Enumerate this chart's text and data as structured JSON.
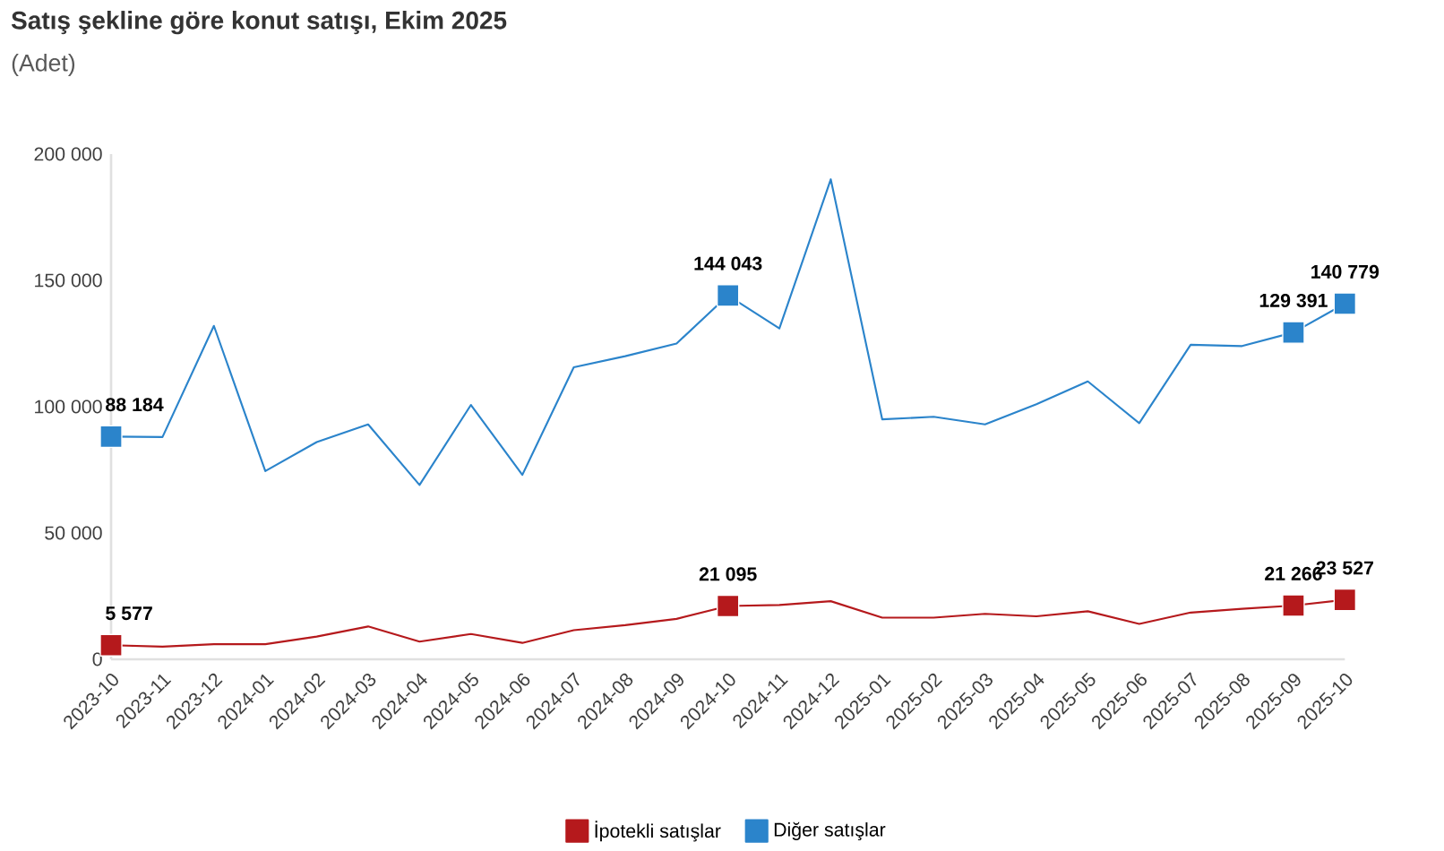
{
  "chart_data": {
    "type": "line",
    "title": "Satış şekline göre konut satışı, Ekim 2025",
    "subtitle": "(Adet)",
    "categories": [
      "2023-10",
      "2023-11",
      "2023-12",
      "2024-01",
      "2024-02",
      "2024-03",
      "2024-04",
      "2024-05",
      "2024-06",
      "2024-07",
      "2024-08",
      "2024-09",
      "2024-10",
      "2024-11",
      "2024-12",
      "2025-01",
      "2025-02",
      "2025-03",
      "2025-04",
      "2025-05",
      "2025-06",
      "2025-07",
      "2025-08",
      "2025-09",
      "2025-10"
    ],
    "series": [
      {
        "name": "İpotekli satışlar",
        "color": "#b5191c",
        "values": [
          5577,
          5000,
          6000,
          6000,
          9000,
          13000,
          7000,
          10000,
          6500,
          11500,
          13500,
          16000,
          21095,
          21500,
          23000,
          16500,
          16500,
          18000,
          17000,
          19000,
          14000,
          18500,
          20000,
          21266,
          23527
        ],
        "value_labels": [
          "5 577",
          null,
          null,
          null,
          null,
          null,
          null,
          null,
          null,
          null,
          null,
          null,
          "21 095",
          null,
          null,
          null,
          null,
          null,
          null,
          null,
          null,
          null,
          null,
          "21 266",
          "23 527"
        ]
      },
      {
        "name": "Diğer satışlar",
        "color": "#2b84cb",
        "values": [
          88184,
          88000,
          132000,
          74500,
          86000,
          93000,
          69000,
          100700,
          73000,
          115600,
          120000,
          125000,
          144043,
          131000,
          190000,
          95000,
          96000,
          93000,
          101000,
          110000,
          93500,
          124500,
          124000,
          129391,
          140779
        ],
        "value_labels": [
          "88 184",
          null,
          null,
          null,
          null,
          null,
          null,
          null,
          null,
          null,
          null,
          null,
          "144 043",
          null,
          null,
          null,
          null,
          null,
          null,
          null,
          null,
          null,
          null,
          "129 391",
          "140 779"
        ]
      }
    ],
    "ylim": [
      0,
      200000
    ],
    "yticks": [
      {
        "value": 0,
        "label": "0"
      },
      {
        "value": 50000,
        "label": "50 000"
      },
      {
        "value": 100000,
        "label": "100 000"
      },
      {
        "value": 150000,
        "label": "150 000"
      },
      {
        "value": 200000,
        "label": "200 000"
      }
    ],
    "legend": "bottom"
  }
}
